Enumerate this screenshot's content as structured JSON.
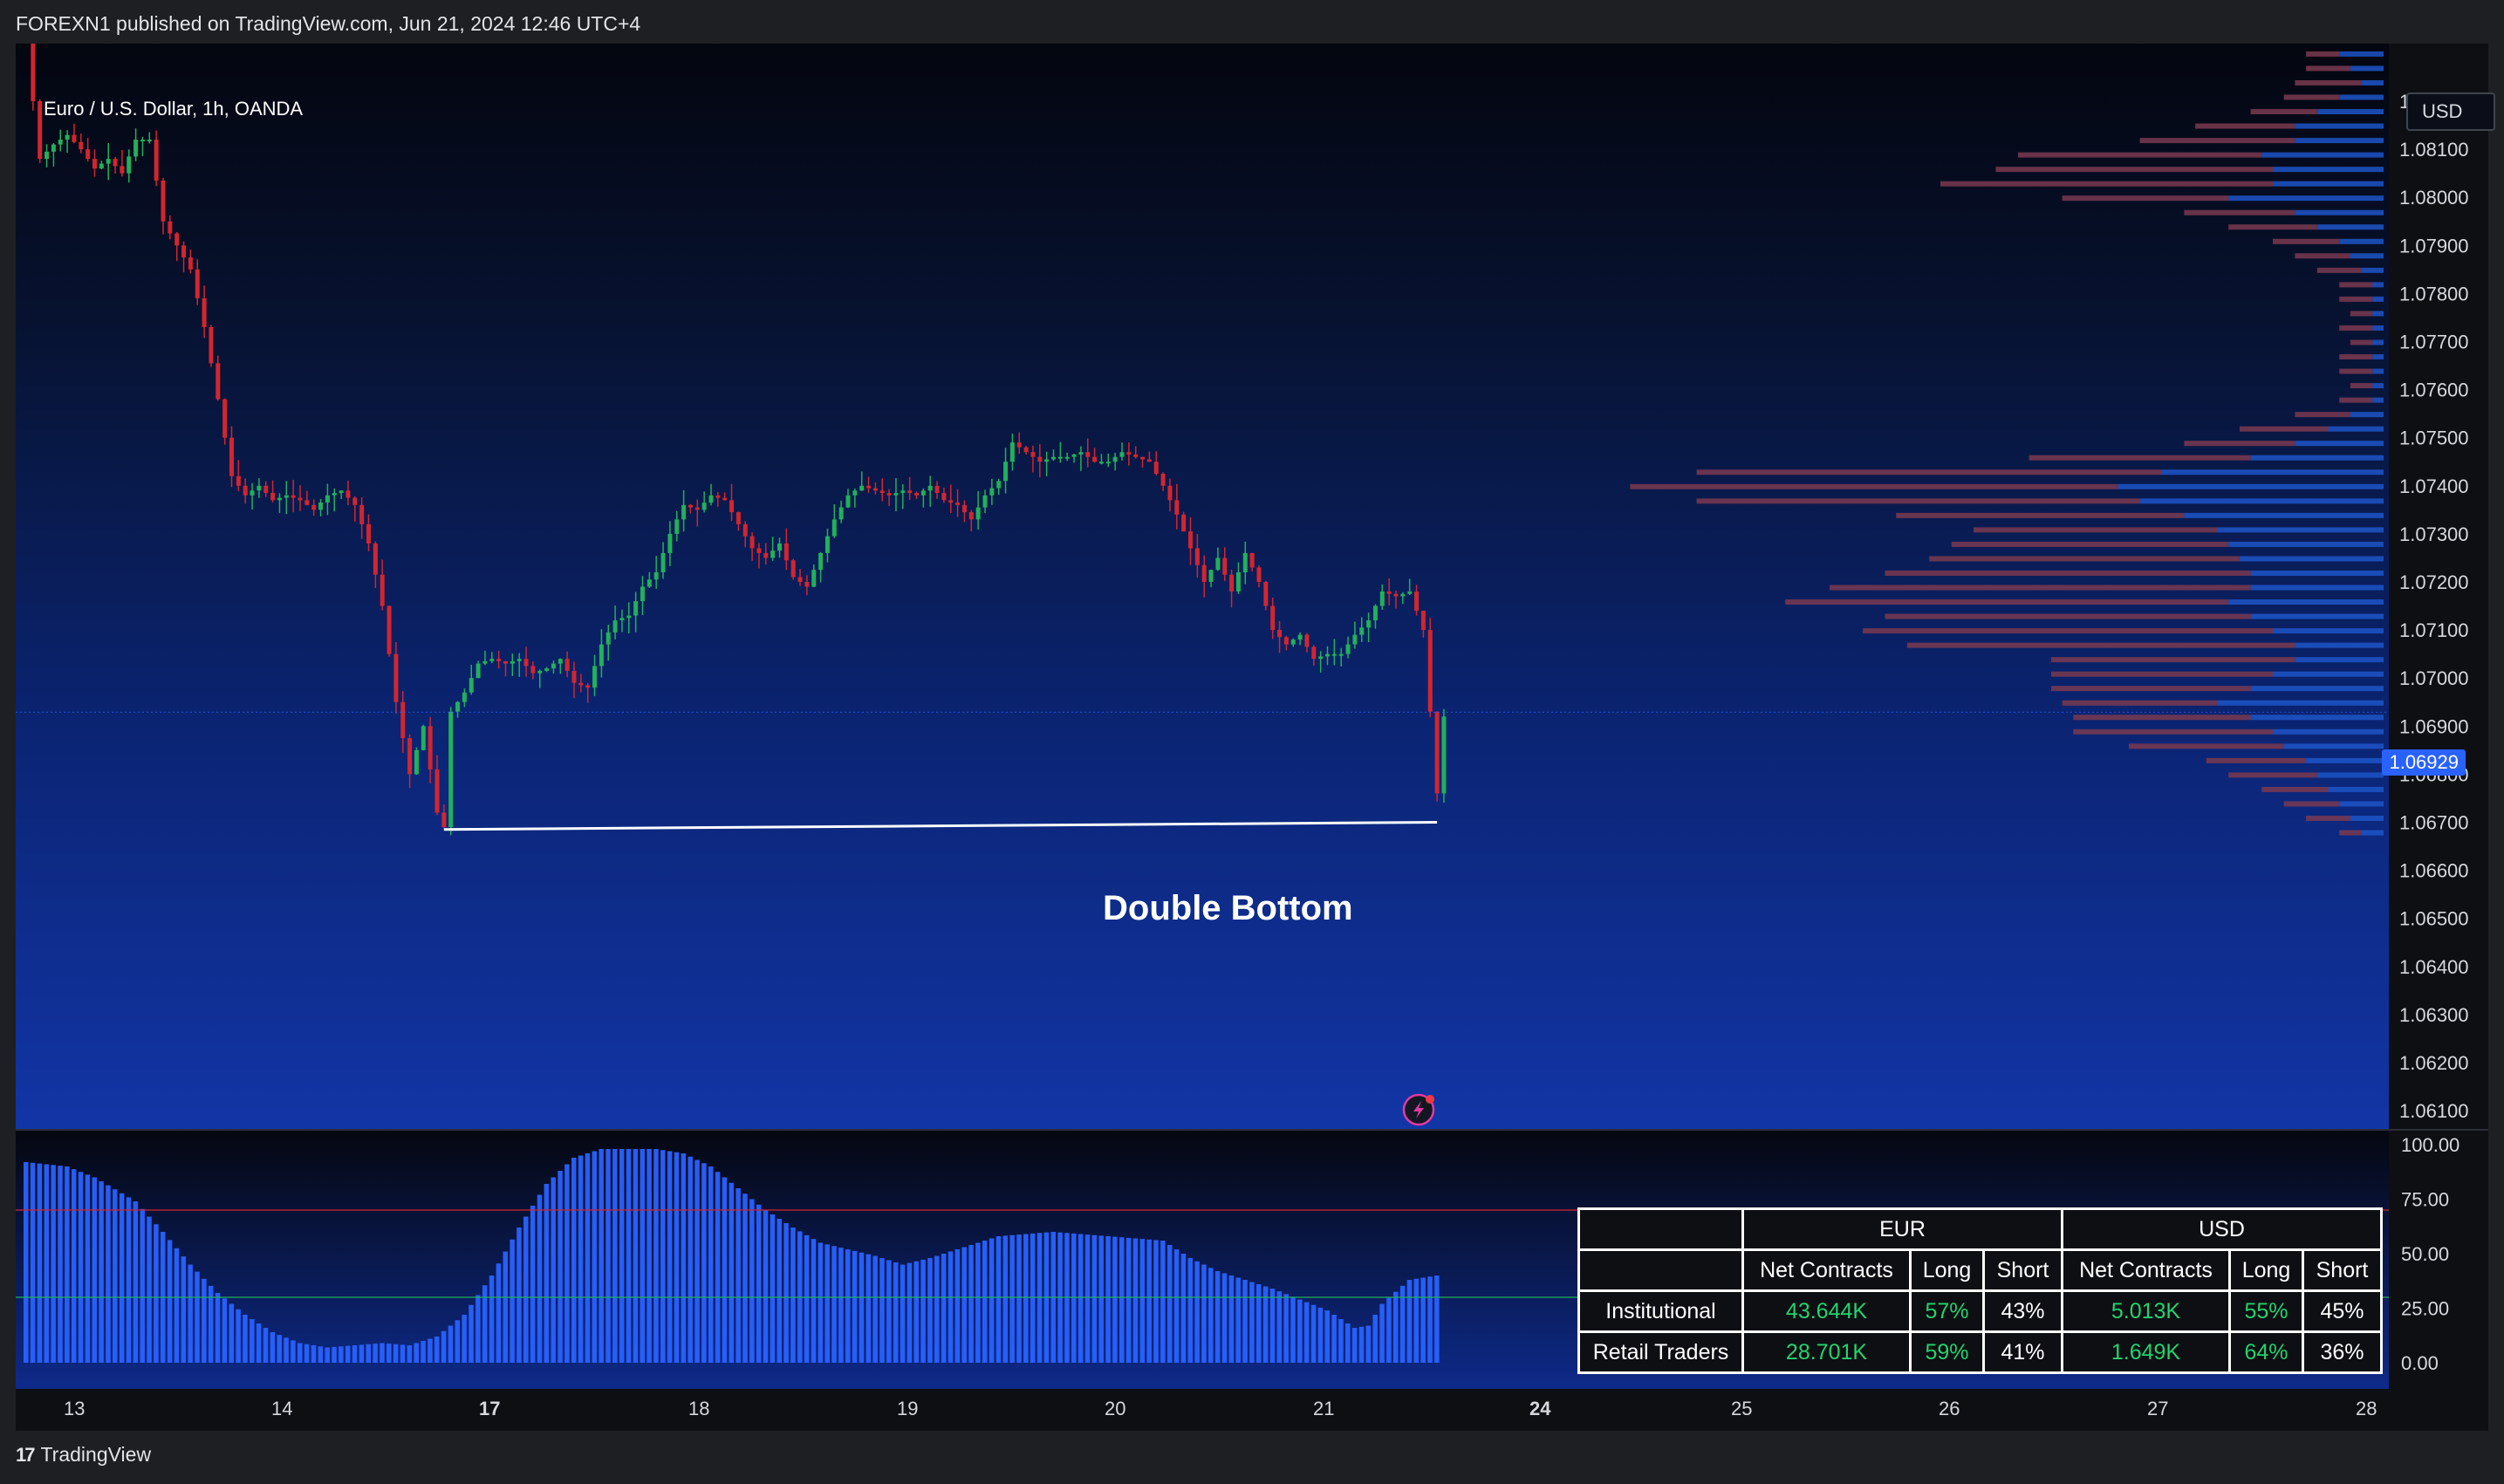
{
  "header": {
    "published_text": "FOREXN1 published on TradingView.com, Jun 21, 2024 12:46 UTC+4"
  },
  "footer": {
    "brand": "TradingView",
    "logo": "tradingview-logo-icon"
  },
  "symbol_label": "Euro / U.S. Dollar, 1h, OANDA",
  "currency_selector": "USD",
  "last_price": "1.06929",
  "annotation": "Double Bottom",
  "colors": {
    "up": "#22b05a",
    "down": "#d3252f",
    "accent": "#2962ff",
    "profile_buy": "#7a3950",
    "profile_sell": "#1d55c8"
  },
  "chart_data": {
    "type": "candlestick",
    "symbol": "EURUSD",
    "price_axis": {
      "ticks": [
        "1.08200",
        "1.08100",
        "1.08000",
        "1.07900",
        "1.07800",
        "1.07700",
        "1.07600",
        "1.07500",
        "1.07400",
        "1.07300",
        "1.07200",
        "1.07100",
        "1.07000",
        "1.06900",
        "1.06800",
        "1.06700",
        "1.06600",
        "1.06500",
        "1.06400",
        "1.06300",
        "1.06200",
        "1.06100"
      ],
      "range": [
        1.0606,
        1.0838
      ]
    },
    "time_axis": {
      "ticks": [
        "13",
        "14",
        "17",
        "18",
        "19",
        "20",
        "21",
        "24",
        "25",
        "26",
        "27",
        "28"
      ],
      "bold": [
        "17",
        "24"
      ]
    },
    "price_path": [
      [
        0,
        1.0838
      ],
      [
        1,
        1.082
      ],
      [
        2,
        1.0808
      ],
      [
        4,
        1.0811
      ],
      [
        6,
        1.0813
      ],
      [
        8,
        1.081
      ],
      [
        10,
        1.0806
      ],
      [
        12,
        1.0808
      ],
      [
        14,
        1.0805
      ],
      [
        16,
        1.0812
      ],
      [
        18,
        1.0812
      ],
      [
        20,
        1.0795
      ],
      [
        22,
        1.079
      ],
      [
        24,
        1.0785
      ],
      [
        26,
        1.0773
      ],
      [
        28,
        1.0758
      ],
      [
        30,
        1.0742
      ],
      [
        32,
        1.0738
      ],
      [
        34,
        1.074
      ],
      [
        36,
        1.0737
      ],
      [
        38,
        1.0738
      ],
      [
        40,
        1.0737
      ],
      [
        42,
        1.0735
      ],
      [
        44,
        1.0738
      ],
      [
        46,
        1.0739
      ],
      [
        48,
        1.0736
      ],
      [
        50,
        1.0728
      ],
      [
        52,
        1.0715
      ],
      [
        54,
        1.0695
      ],
      [
        56,
        1.068
      ],
      [
        57,
        1.0685
      ],
      [
        58,
        1.069
      ],
      [
        60,
        1.0672
      ],
      [
        61,
        1.0669
      ],
      [
        62,
        1.0693
      ],
      [
        64,
        1.0697
      ],
      [
        66,
        1.0703
      ],
      [
        68,
        1.0704
      ],
      [
        70,
        1.0703
      ],
      [
        72,
        1.0704
      ],
      [
        74,
        1.0701
      ],
      [
        76,
        1.0702
      ],
      [
        78,
        1.0704
      ],
      [
        80,
        1.0699
      ],
      [
        82,
        1.0698
      ],
      [
        84,
        1.0707
      ],
      [
        86,
        1.0712
      ],
      [
        88,
        1.0713
      ],
      [
        90,
        1.0719
      ],
      [
        92,
        1.0722
      ],
      [
        94,
        1.073
      ],
      [
        96,
        1.0736
      ],
      [
        98,
        1.0735
      ],
      [
        100,
        1.0738
      ],
      [
        102,
        1.0737
      ],
      [
        104,
        1.0732
      ],
      [
        106,
        1.0727
      ],
      [
        108,
        1.0725
      ],
      [
        110,
        1.0728
      ],
      [
        112,
        1.0721
      ],
      [
        114,
        1.0719
      ],
      [
        116,
        1.0726
      ],
      [
        118,
        1.0733
      ],
      [
        120,
        1.0738
      ],
      [
        122,
        1.074
      ],
      [
        124,
        1.0739
      ],
      [
        126,
        1.0738
      ],
      [
        128,
        1.0739
      ],
      [
        130,
        1.0738
      ],
      [
        132,
        1.074
      ],
      [
        134,
        1.0737
      ],
      [
        136,
        1.0736
      ],
      [
        138,
        1.0733
      ],
      [
        140,
        1.0738
      ],
      [
        142,
        1.0741
      ],
      [
        144,
        1.0749
      ],
      [
        146,
        1.0747
      ],
      [
        148,
        1.0745
      ],
      [
        150,
        1.0746
      ],
      [
        152,
        1.0746
      ],
      [
        154,
        1.0747
      ],
      [
        156,
        1.0745
      ],
      [
        158,
        1.0745
      ],
      [
        160,
        1.0747
      ],
      [
        162,
        1.0746
      ],
      [
        164,
        1.0745
      ],
      [
        166,
        1.074
      ],
      [
        168,
        1.0734
      ],
      [
        170,
        1.0727
      ],
      [
        172,
        1.072
      ],
      [
        174,
        1.0725
      ],
      [
        176,
        1.0718
      ],
      [
        178,
        1.0726
      ],
      [
        180,
        1.072
      ],
      [
        182,
        1.071
      ],
      [
        184,
        1.0707
      ],
      [
        186,
        1.0709
      ],
      [
        188,
        1.0704
      ],
      [
        190,
        1.0705
      ],
      [
        192,
        1.0705
      ],
      [
        194,
        1.0709
      ],
      [
        196,
        1.0712
      ],
      [
        198,
        1.0718
      ],
      [
        200,
        1.0717
      ],
      [
        202,
        1.0718
      ],
      [
        204,
        1.071
      ],
      [
        206,
        1.0676
      ],
      [
        207,
        1.0692
      ]
    ],
    "annotations": [
      {
        "type": "trendline",
        "from": [
          61,
          1.06685
        ],
        "to": [
          206,
          1.067
        ],
        "label": "Double Bottom"
      }
    ],
    "indicator": {
      "type": "bar",
      "axis": {
        "ticks": [
          "100.00",
          "75.00",
          "50.00",
          "25.00",
          "0.00"
        ],
        "range": [
          0,
          100
        ]
      },
      "levels": [
        70,
        30
      ],
      "path": [
        [
          0,
          92
        ],
        [
          6,
          90
        ],
        [
          10,
          85
        ],
        [
          16,
          74
        ],
        [
          20,
          60
        ],
        [
          24,
          45
        ],
        [
          28,
          32
        ],
        [
          32,
          22
        ],
        [
          36,
          14
        ],
        [
          40,
          9
        ],
        [
          44,
          7
        ],
        [
          48,
          8
        ],
        [
          52,
          9
        ],
        [
          56,
          8
        ],
        [
          60,
          12
        ],
        [
          64,
          22
        ],
        [
          68,
          40
        ],
        [
          72,
          62
        ],
        [
          76,
          82
        ],
        [
          80,
          94
        ],
        [
          84,
          98
        ],
        [
          88,
          98
        ],
        [
          92,
          98
        ],
        [
          96,
          96
        ],
        [
          100,
          90
        ],
        [
          104,
          80
        ],
        [
          108,
          70
        ],
        [
          112,
          62
        ],
        [
          116,
          55
        ],
        [
          120,
          52
        ],
        [
          124,
          49
        ],
        [
          128,
          45
        ],
        [
          132,
          48
        ],
        [
          136,
          52
        ],
        [
          140,
          56
        ],
        [
          142,
          58
        ],
        [
          146,
          59
        ],
        [
          150,
          60
        ],
        [
          154,
          59
        ],
        [
          158,
          58
        ],
        [
          162,
          57
        ],
        [
          166,
          56
        ],
        [
          170,
          48
        ],
        [
          174,
          42
        ],
        [
          178,
          38
        ],
        [
          182,
          34
        ],
        [
          186,
          29
        ],
        [
          190,
          24
        ],
        [
          194,
          16
        ],
        [
          196,
          17
        ],
        [
          198,
          27
        ],
        [
          202,
          38
        ],
        [
          206,
          40
        ]
      ]
    },
    "volume_profile": {
      "levels": [
        1.0833,
        1.083,
        1.0827,
        1.0824,
        1.0821,
        1.0818,
        1.0815,
        1.0812,
        1.0809,
        1.0806,
        1.0803,
        1.08,
        1.0797,
        1.0794,
        1.0791,
        1.0788,
        1.0785,
        1.0782,
        1.0779,
        1.0776,
        1.0773,
        1.077,
        1.0767,
        1.0764,
        1.0761,
        1.0758,
        1.0755,
        1.0752,
        1.0749,
        1.0746,
        1.0743,
        1.074,
        1.0737,
        1.0734,
        1.0731,
        1.0728,
        1.0725,
        1.0722,
        1.0719,
        1.0716,
        1.0713,
        1.071,
        1.0707,
        1.0704,
        1.0701,
        1.0698,
        1.0695,
        1.0692,
        1.0689,
        1.0686,
        1.0683,
        1.068,
        1.0677,
        1.0674,
        1.0671,
        1.0668
      ],
      "buy": [
        2,
        3,
        4,
        6,
        5,
        6,
        9,
        14,
        22,
        25,
        30,
        15,
        10,
        8,
        6,
        5,
        4,
        3,
        3,
        2,
        3,
        2,
        3,
        3,
        2,
        3,
        5,
        8,
        10,
        20,
        42,
        44,
        40,
        26,
        22,
        25,
        28,
        33,
        38,
        40,
        33,
        37,
        35,
        22,
        20,
        18,
        14,
        16,
        18,
        14,
        9,
        8,
        6,
        5,
        4,
        2
      ],
      "sell": [
        3,
        4,
        3,
        2,
        4,
        6,
        8,
        8,
        11,
        10,
        10,
        14,
        8,
        6,
        4,
        3,
        2,
        1,
        1,
        1,
        1,
        1,
        1,
        1,
        1,
        1,
        3,
        5,
        8,
        12,
        20,
        24,
        22,
        18,
        15,
        14,
        13,
        12,
        12,
        14,
        12,
        10,
        8,
        8,
        10,
        12,
        15,
        12,
        10,
        9,
        7,
        6,
        5,
        4,
        3,
        2
      ]
    },
    "table": {
      "headers": [
        "EUR",
        "USD"
      ],
      "subheaders": [
        "Net Contracts",
        "Long",
        "Short",
        "Net Contracts",
        "Long",
        "Short"
      ],
      "rows": [
        {
          "label": "Institutional",
          "values": [
            "43.644K",
            "57%",
            "43%",
            "5.013K",
            "55%",
            "45%"
          ]
        },
        {
          "label": "Retail Traders",
          "values": [
            "28.701K",
            "59%",
            "41%",
            "1.649K",
            "64%",
            "36%"
          ]
        }
      ]
    }
  }
}
